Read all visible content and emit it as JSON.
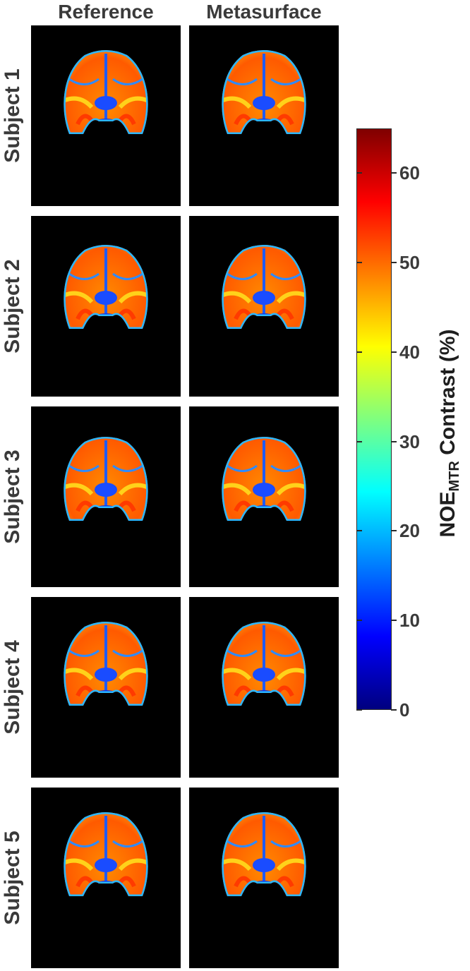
{
  "columns": [
    "Reference",
    "Metasurface"
  ],
  "rows": [
    "Subject 1",
    "Subject 2",
    "Subject 3",
    "Subject 4",
    "Subject 5"
  ],
  "colorbar": {
    "label_main": "NOE",
    "label_sub": "MTR",
    "label_rest": " Contrast (%)",
    "ticks": [
      0,
      10,
      20,
      30,
      40,
      50,
      60
    ],
    "min": 0,
    "max": 65,
    "colormap": "jet"
  }
}
